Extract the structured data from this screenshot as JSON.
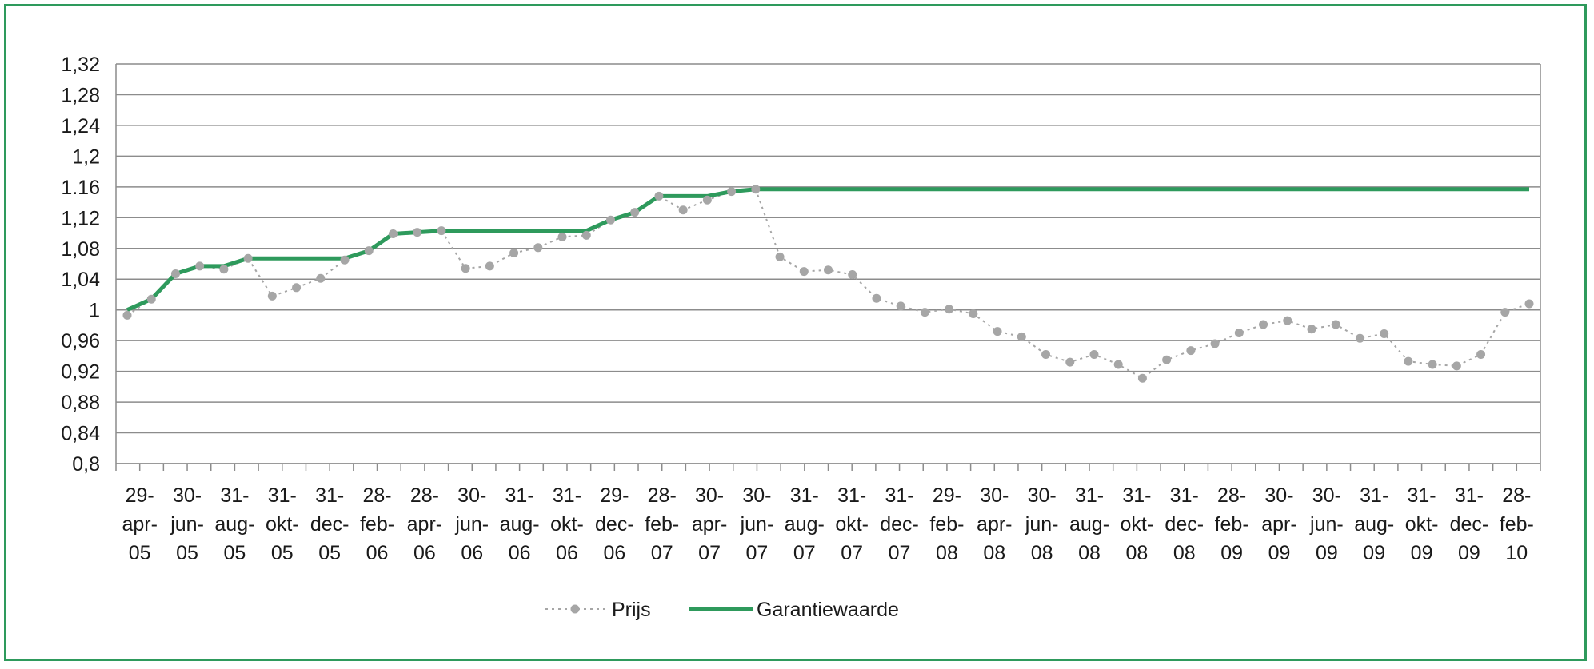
{
  "chart_data": {
    "type": "line",
    "ylim": [
      0.8,
      1.32
    ],
    "yticks": [
      "1,32",
      "1,28",
      "1,24",
      "1,2",
      "1.16",
      "1,12",
      "1,08",
      "1,04",
      "1",
      "0,96",
      "0,92",
      "0,88",
      "0,84",
      "0,8"
    ],
    "ytick_values": [
      1.32,
      1.28,
      1.24,
      1.2,
      1.16,
      1.12,
      1.08,
      1.04,
      1.0,
      0.96,
      0.92,
      0.88,
      0.84,
      0.8
    ],
    "grid": true,
    "legend_position": "bottom",
    "xticks": [
      [
        "29-",
        "apr-",
        "05"
      ],
      [
        "30-",
        "jun-",
        "05"
      ],
      [
        "31-",
        "aug-",
        "05"
      ],
      [
        "31-",
        "okt-",
        "05"
      ],
      [
        "31-",
        "dec-",
        "05"
      ],
      [
        "28-",
        "feb-",
        "06"
      ],
      [
        "28-",
        "apr-",
        "06"
      ],
      [
        "30-",
        "jun-",
        "06"
      ],
      [
        "31-",
        "aug-",
        "06"
      ],
      [
        "31-",
        "okt-",
        "06"
      ],
      [
        "29-",
        "dec-",
        "06"
      ],
      [
        "28-",
        "feb-",
        "07"
      ],
      [
        "30-",
        "apr-",
        "07"
      ],
      [
        "30-",
        "jun-",
        "07"
      ],
      [
        "31-",
        "aug-",
        "07"
      ],
      [
        "31-",
        "okt-",
        "07"
      ],
      [
        "31-",
        "dec-",
        "07"
      ],
      [
        "29-",
        "feb-",
        "08"
      ],
      [
        "30-",
        "apr-",
        "08"
      ],
      [
        "30-",
        "jun-",
        "08"
      ],
      [
        "31-",
        "aug-",
        "08"
      ],
      [
        "31-",
        "okt-",
        "08"
      ],
      [
        "31-",
        "dec-",
        "08"
      ],
      [
        "28-",
        "feb-",
        "09"
      ],
      [
        "30-",
        "apr-",
        "09"
      ],
      [
        "30-",
        "jun-",
        "09"
      ],
      [
        "31-",
        "aug-",
        "09"
      ],
      [
        "31-",
        "okt-",
        "09"
      ],
      [
        "31-",
        "dec-",
        "09"
      ],
      [
        "28-",
        "feb-",
        "10"
      ]
    ],
    "n_points": 59,
    "series": [
      {
        "name": "Prijs",
        "style": "dotted-markers",
        "color": "#a6a6a6",
        "values": [
          0.993,
          1.014,
          1.047,
          1.057,
          1.053,
          1.067,
          1.018,
          1.029,
          1.041,
          1.065,
          1.077,
          1.099,
          1.101,
          1.103,
          1.054,
          1.057,
          1.074,
          1.081,
          1.095,
          1.097,
          1.117,
          1.127,
          1.148,
          1.13,
          1.143,
          1.154,
          1.157,
          1.069,
          1.05,
          1.052,
          1.046,
          1.015,
          1.005,
          0.997,
          1.001,
          0.995,
          0.972,
          0.965,
          0.942,
          0.932,
          0.942,
          0.929,
          0.911,
          0.935,
          0.947,
          0.956,
          0.97,
          0.981,
          0.986,
          0.975,
          0.981,
          0.963,
          0.969,
          0.933,
          0.929,
          0.927,
          0.942,
          0.997,
          1.008
        ]
      },
      {
        "name": "Garantiewaarde",
        "style": "solid",
        "color": "#2e9a5c",
        "values": [
          1.0,
          1.014,
          1.047,
          1.057,
          1.057,
          1.067,
          1.067,
          1.067,
          1.067,
          1.067,
          1.077,
          1.099,
          1.101,
          1.103,
          1.103,
          1.103,
          1.103,
          1.103,
          1.103,
          1.103,
          1.117,
          1.127,
          1.148,
          1.148,
          1.148,
          1.154,
          1.157,
          1.157,
          1.157,
          1.157,
          1.157,
          1.157,
          1.157,
          1.157,
          1.157,
          1.157,
          1.157,
          1.157,
          1.157,
          1.157,
          1.157,
          1.157,
          1.157,
          1.157,
          1.157,
          1.157,
          1.157,
          1.157,
          1.157,
          1.157,
          1.157,
          1.157,
          1.157,
          1.157,
          1.157,
          1.157,
          1.157,
          1.157,
          1.157
        ]
      }
    ]
  }
}
